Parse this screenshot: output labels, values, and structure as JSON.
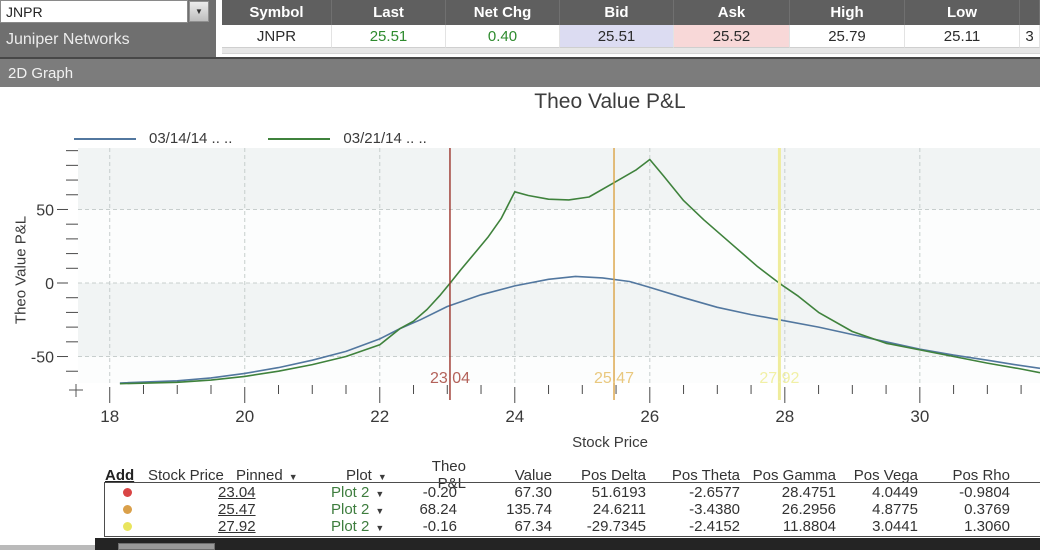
{
  "symbol_panel": {
    "symbol": "JNPR",
    "company_name": "Juniper Networks"
  },
  "quote_table": {
    "columns": [
      "Symbol",
      "Last",
      "Net Chg",
      "Bid",
      "Ask",
      "High",
      "Low"
    ],
    "row": {
      "symbol": "JNPR",
      "last": "25.51",
      "net_chg": "0.40",
      "bid": "25.51",
      "ask": "25.52",
      "high": "25.79",
      "low": "25.11",
      "next_clipped": "3"
    },
    "colors": {
      "positive": "#2e8b2e",
      "bid_bg": "#dcdcf2",
      "ask_bg": "#f8d8d8"
    }
  },
  "panel_title": "2D Graph",
  "chart_data": {
    "type": "line",
    "title": "Theo Value P&L",
    "xlabel": "Stock Price",
    "ylabel": "Theo Value P&L",
    "xlim": [
      17.53,
      31.78
    ],
    "ylim": [
      -68,
      91.8
    ],
    "x_major_ticks": [
      18,
      20,
      22,
      24,
      26,
      28,
      30
    ],
    "x_minor_step": 0.5,
    "y_major_ticks": [
      50,
      0,
      -50
    ],
    "y_minor_step": 10,
    "grid": "dashed",
    "band_colors": [
      "#f1f4f4",
      "#fcfdfd"
    ],
    "legend_position": "top-left",
    "series": [
      {
        "name": "03/14/14  .. ..",
        "color": "#52779f",
        "points": [
          [
            18.15,
            -68
          ],
          [
            19,
            -66.5
          ],
          [
            19.5,
            -64.5
          ],
          [
            20,
            -61.5
          ],
          [
            20.5,
            -57.5
          ],
          [
            21,
            -52.5
          ],
          [
            21.5,
            -46.5
          ],
          [
            22,
            -38
          ],
          [
            22.3,
            -31
          ],
          [
            22.6,
            -25
          ],
          [
            23,
            -16
          ],
          [
            23.5,
            -8
          ],
          [
            24,
            -2
          ],
          [
            24.5,
            2.5
          ],
          [
            24.9,
            4.5
          ],
          [
            25.3,
            3.5
          ],
          [
            25.7,
            1
          ],
          [
            26,
            -3
          ],
          [
            26.5,
            -10
          ],
          [
            27,
            -16.5
          ],
          [
            27.5,
            -21.5
          ],
          [
            27.92,
            -25
          ],
          [
            28.5,
            -30
          ],
          [
            29,
            -35
          ],
          [
            29.5,
            -40
          ],
          [
            30,
            -45
          ],
          [
            30.5,
            -49
          ],
          [
            31,
            -52.5
          ],
          [
            31.4,
            -55.5
          ],
          [
            31.78,
            -58
          ]
        ]
      },
      {
        "name": "03/21/14  .. ..",
        "color": "#3f823c",
        "points": [
          [
            18.15,
            -68.5
          ],
          [
            19,
            -67.5
          ],
          [
            19.5,
            -66
          ],
          [
            20,
            -63.5
          ],
          [
            20.5,
            -60
          ],
          [
            21,
            -55.5
          ],
          [
            21.5,
            -50
          ],
          [
            22,
            -42
          ],
          [
            22.3,
            -31
          ],
          [
            22.5,
            -26
          ],
          [
            22.7,
            -18
          ],
          [
            22.9,
            -8
          ],
          [
            23.04,
            -0.2
          ],
          [
            23.2,
            9
          ],
          [
            23.4,
            20
          ],
          [
            23.6,
            31
          ],
          [
            23.8,
            44
          ],
          [
            24,
            62
          ],
          [
            24.2,
            59.5
          ],
          [
            24.5,
            57
          ],
          [
            24.8,
            56.5
          ],
          [
            25.1,
            58.5
          ],
          [
            25.47,
            68.2
          ],
          [
            25.8,
            77
          ],
          [
            26,
            84
          ],
          [
            26.2,
            73
          ],
          [
            26.5,
            56
          ],
          [
            26.8,
            43
          ],
          [
            27.2,
            27
          ],
          [
            27.6,
            11
          ],
          [
            27.92,
            -0.2
          ],
          [
            28.2,
            -9
          ],
          [
            28.5,
            -20
          ],
          [
            29,
            -33
          ],
          [
            29.5,
            -41
          ],
          [
            30,
            -45.5
          ],
          [
            30.5,
            -50
          ],
          [
            31,
            -54.5
          ],
          [
            31.5,
            -58.5
          ],
          [
            31.78,
            -61
          ]
        ]
      }
    ],
    "markers": [
      {
        "x": 23.04,
        "label": "23.04",
        "line_color": "#9c352c",
        "label_color": "#b4625a",
        "line_width": 1.4
      },
      {
        "x": 25.47,
        "label": "25.47",
        "line_color": "#dba344",
        "label_color": "#e9c87e",
        "line_width": 1.4
      },
      {
        "x": 27.92,
        "label": "27.92",
        "line_color": "#efec9c",
        "label_color": "#f1f0a5",
        "line_width": 3
      }
    ]
  },
  "positions_table": {
    "headers": {
      "add": "Add",
      "stock_price": "Stock Price",
      "pinned": "Pinned",
      "plot": "Plot",
      "theo_pnl": "Theo P&L",
      "value": "Value",
      "pos_delta": "Pos Delta",
      "pos_theta": "Pos Theta",
      "pos_gamma": "Pos Gamma",
      "pos_vega": "Pos Vega",
      "pos_rho": "Pos Rho"
    },
    "plot_color": "#3e7d3e",
    "rows": [
      {
        "dot_color": "#d94545",
        "stock_price": "23.04",
        "plot": "Plot 2",
        "theo_pnl": "-0.20",
        "value": "67.30",
        "pos_delta": "51.6193",
        "pos_theta": "-2.6577",
        "pos_gamma": "28.4751",
        "pos_vega": "4.0449",
        "pos_rho": "-0.9804"
      },
      {
        "dot_color": "#daa04a",
        "stock_price": "25.47",
        "plot": "Plot 2",
        "theo_pnl": "68.24",
        "value": "135.74",
        "pos_delta": "24.6211",
        "pos_theta": "-3.4380",
        "pos_gamma": "26.2956",
        "pos_vega": "4.8775",
        "pos_rho": "0.3769"
      },
      {
        "dot_color": "#e9e55e",
        "stock_price": "27.92",
        "plot": "Plot 2",
        "theo_pnl": "-0.16",
        "value": "67.34",
        "pos_delta": "-29.7345",
        "pos_theta": "-2.4152",
        "pos_gamma": "11.8804",
        "pos_vega": "3.0441",
        "pos_rho": "1.3060"
      }
    ]
  }
}
